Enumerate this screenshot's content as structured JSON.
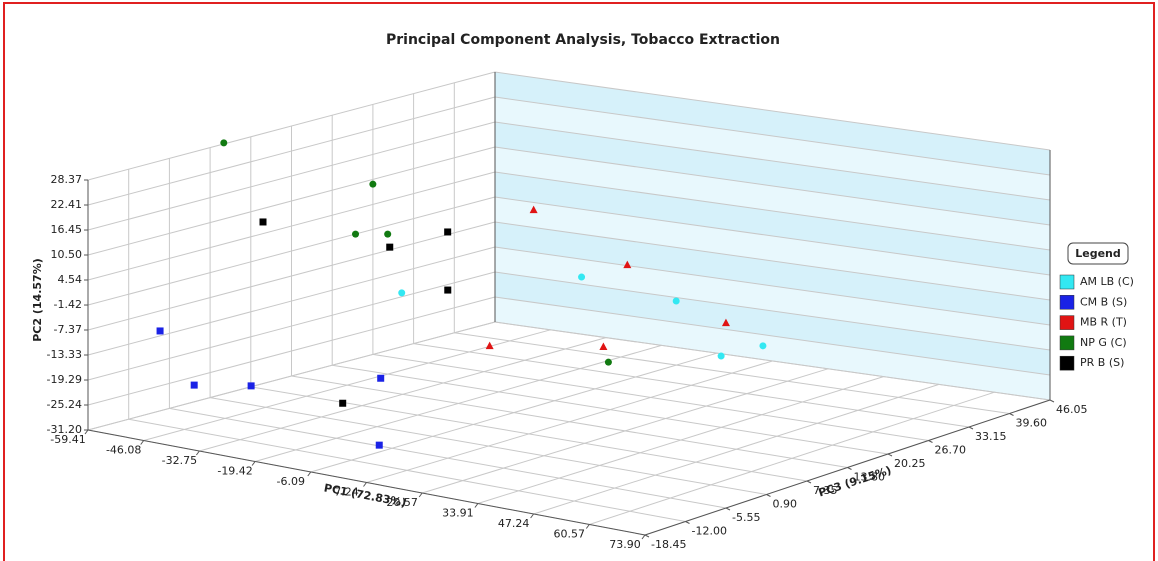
{
  "chart_data": {
    "type": "scatter3d",
    "title": "Principal Component Analysis, Tobacco Extraction",
    "x_label": "PC1 (72.83%)",
    "y_label": "PC2 (14.57%)",
    "z_label": "PC3 (9.15%)",
    "xlim": [
      -59.41,
      73.9
    ],
    "ylim": [
      -31.2,
      28.37
    ],
    "zlim": [
      -18.45,
      46.05
    ],
    "xticks": [
      -59.41,
      -46.08,
      -32.75,
      -19.42,
      -6.09,
      7.24,
      20.57,
      33.91,
      47.24,
      60.57,
      {
        "value": 73.9,
        "label": "73.90"
      }
    ],
    "yticks": [
      {
        "value": -31.2,
        "label": "-31.20"
      },
      -25.24,
      -19.29,
      -13.33,
      -7.37,
      -1.42,
      4.54,
      {
        "value": 10.5,
        "label": "10.50"
      },
      16.45,
      22.41,
      28.37
    ],
    "zticks": [
      -18.45,
      {
        "value": -12,
        "label": "-12.00"
      },
      -5.55,
      {
        "value": 0.9,
        "label": "0.90"
      },
      7.35,
      {
        "value": 13.8,
        "label": "13.80"
      },
      20.25,
      {
        "value": 26.7,
        "label": "26.70"
      },
      33.15,
      {
        "value": 39.6,
        "label": "39.60"
      },
      46.05
    ],
    "grid": true,
    "wall_color": "#d6f1fa",
    "legend_title": "Legend",
    "legend": "right",
    "series": [
      {
        "name": "AM LB (C)",
        "color": "#33e8f2",
        "marker": "circle",
        "x": [
          -13.5,
          0.4,
          23.1,
          43.6,
          39.0
        ],
        "y": [
          1.7,
          -0.7,
          -2.8,
          -9.6,
          -12.5
        ],
        "z": [
          0.9,
          20.25,
          20.25,
          13.8,
          23.5
        ]
      },
      {
        "name": "CM B (S)",
        "color": "#1a22e6",
        "marker": "square",
        "x": [
          -51.9,
          -38.9,
          -30.1,
          -3.9,
          5.4
        ],
        "y": [
          -8.8,
          -18.0,
          -17.9,
          -12.7,
          -24.1
        ],
        "z": [
          -12.0,
          -15.2,
          -12.0,
          -8.8,
          -15.2
        ]
      },
      {
        "name": "MB R (T)",
        "color": "#e01414",
        "marker": "triangle",
        "x": [
          -30.6,
          -3.2,
          25.3,
          -11.9,
          20.2
        ],
        "y": [
          4.9,
          -2.7,
          -10.7,
          -16.3,
          -9.8
        ],
        "z": [
          33.15,
          29.9,
          26.7,
          13.8,
          10.6
        ]
      },
      {
        "name": "NP G (C)",
        "color": "#117a11",
        "marker": "circle",
        "x": [
          -59.0,
          -39.9,
          -29.4,
          -26.6,
          26.3
        ],
        "y": [
          28.8,
          17.7,
          11.6,
          10.7,
          -10.9
        ],
        "z": [
          2.8,
          13.8,
          4.1,
          7.35,
          7.35
        ]
      },
      {
        "name": "PR B (S)",
        "color": "#000000",
        "marker": "square",
        "x": [
          -41.9,
          -21.2,
          -26.8,
          -12.2,
          -13.0
        ],
        "y": [
          15.0,
          9.9,
          7.1,
          -0.2,
          -20.3
        ],
        "z": [
          -2.3,
          4.1,
          17.0,
          7.35,
          -8.8
        ]
      }
    ]
  }
}
